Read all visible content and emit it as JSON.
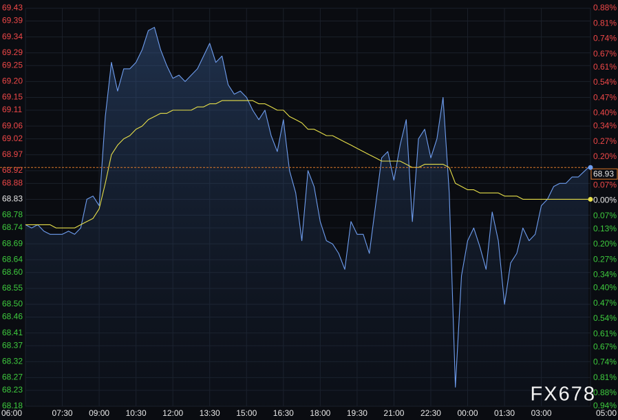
{
  "chart_data": {
    "type": "line",
    "x": [
      0,
      15,
      30,
      45,
      60,
      75,
      90,
      105,
      120,
      135,
      150,
      165,
      180,
      195,
      210,
      225,
      240,
      255,
      270,
      285,
      300,
      315,
      330,
      345,
      360,
      375,
      390,
      405,
      420,
      435,
      450,
      465,
      480,
      495,
      510,
      525,
      540,
      555,
      570,
      585,
      600,
      615,
      630,
      645,
      660,
      675,
      690,
      705,
      720,
      735,
      750,
      765,
      780,
      795,
      810,
      825,
      840,
      855,
      870,
      885,
      900,
      915,
      930,
      945,
      960,
      975,
      990,
      1005,
      1020,
      1035,
      1050,
      1065,
      1080,
      1095,
      1110,
      1125,
      1140,
      1155,
      1170,
      1185,
      1200,
      1215,
      1230,
      1245,
      1260,
      1275,
      1290,
      1305,
      1320,
      1335,
      1350,
      1375
    ],
    "series": [
      {
        "color": "#6f9ef0",
        "values": [
          68.75,
          68.74,
          68.75,
          68.73,
          68.72,
          68.72,
          68.72,
          68.73,
          68.72,
          68.74,
          68.83,
          68.84,
          68.81,
          69.09,
          69.26,
          69.17,
          69.24,
          69.24,
          69.26,
          69.3,
          69.36,
          69.37,
          69.3,
          69.25,
          69.21,
          69.22,
          69.2,
          69.22,
          69.24,
          69.28,
          69.32,
          69.26,
          69.28,
          69.19,
          69.16,
          69.17,
          69.15,
          69.11,
          69.08,
          69.11,
          69.03,
          68.98,
          69.08,
          68.92,
          68.85,
          68.7,
          68.92,
          68.87,
          68.76,
          68.7,
          68.69,
          68.66,
          68.61,
          68.76,
          68.72,
          68.72,
          68.66,
          68.81,
          68.96,
          68.98,
          68.89,
          69.0,
          69.08,
          68.76,
          69.02,
          69.05,
          68.96,
          69.02,
          69.15,
          68.85,
          68.24,
          68.59,
          68.7,
          68.74,
          68.68,
          68.61,
          68.79,
          68.7,
          68.5,
          68.63,
          68.66,
          68.74,
          68.7,
          68.72,
          68.81,
          68.83,
          68.87,
          68.88,
          68.88,
          68.9,
          68.9,
          68.93
        ]
      },
      {
        "color": "#e8e04a",
        "values": [
          68.75,
          68.75,
          68.75,
          68.75,
          68.75,
          68.74,
          68.74,
          68.74,
          68.74,
          68.75,
          68.76,
          68.77,
          68.8,
          68.88,
          68.97,
          69.0,
          69.02,
          69.03,
          69.05,
          69.06,
          69.08,
          69.09,
          69.1,
          69.1,
          69.11,
          69.11,
          69.11,
          69.11,
          69.12,
          69.12,
          69.13,
          69.13,
          69.14,
          69.14,
          69.14,
          69.14,
          69.14,
          69.14,
          69.13,
          69.13,
          69.12,
          69.11,
          69.11,
          69.09,
          69.08,
          69.07,
          69.05,
          69.05,
          69.04,
          69.03,
          69.03,
          69.02,
          69.01,
          69.0,
          68.99,
          68.98,
          68.97,
          68.96,
          68.95,
          68.95,
          68.95,
          68.95,
          68.94,
          68.93,
          68.93,
          68.94,
          68.94,
          68.94,
          68.94,
          68.93,
          68.88,
          68.87,
          68.86,
          68.86,
          68.85,
          68.85,
          68.85,
          68.85,
          68.84,
          68.84,
          68.84,
          68.83,
          68.83,
          68.83,
          68.83,
          68.83,
          68.83,
          68.83,
          68.83,
          68.83,
          68.83,
          68.83
        ]
      }
    ],
    "xlim": [
      0,
      1380
    ],
    "xticks": [
      {
        "value": 0,
        "label": "06:00"
      },
      {
        "value": 90,
        "label": "07:30"
      },
      {
        "value": 180,
        "label": "09:00"
      },
      {
        "value": 270,
        "label": "10:30"
      },
      {
        "value": 360,
        "label": "12:00"
      },
      {
        "value": 450,
        "label": "13:30"
      },
      {
        "value": 540,
        "label": "15:00"
      },
      {
        "value": 630,
        "label": "16:30"
      },
      {
        "value": 720,
        "label": "18:00"
      },
      {
        "value": 810,
        "label": "19:30"
      },
      {
        "value": 900,
        "label": "21:00"
      },
      {
        "value": 990,
        "label": "22:30"
      },
      {
        "value": 1080,
        "label": "00:00"
      },
      {
        "value": 1170,
        "label": "01:30"
      },
      {
        "value": 1260,
        "label": "03:00"
      },
      {
        "value": 1380,
        "label": "05:00"
      }
    ],
    "ylim": [
      68.18,
      69.43
    ],
    "yticks": [
      69.43,
      69.39,
      69.34,
      69.29,
      69.25,
      {
        "value": 69.2,
        "label": "69.20"
      },
      69.15,
      69.11,
      69.06,
      69.02,
      68.97,
      68.92,
      68.88,
      68.83,
      68.78,
      68.74,
      68.69,
      68.64,
      {
        "value": 68.6,
        "label": "68.60"
      },
      68.55,
      {
        "value": 68.5,
        "label": "68.50"
      },
      68.46,
      68.41,
      68.37,
      68.32,
      68.27,
      68.23,
      68.18
    ],
    "y2lim": [
      -0.94,
      0.88
    ],
    "y2ticks": [
      {
        "value": 0.88,
        "label": "0.88%"
      },
      {
        "value": 0.81,
        "label": "0.81%"
      },
      {
        "value": 0.74,
        "label": "0.74%"
      },
      {
        "value": 0.67,
        "label": "0.67%"
      },
      {
        "value": 0.61,
        "label": "0.61%"
      },
      {
        "value": 0.54,
        "label": "0.54%"
      },
      {
        "value": 0.47,
        "label": "0.47%"
      },
      {
        "value": 0.4,
        "label": "0.40%"
      },
      {
        "value": 0.34,
        "label": "0.34%"
      },
      {
        "value": 0.27,
        "label": "0.27%"
      },
      {
        "value": 0.2,
        "label": "0.20%"
      },
      {
        "value": 0.13,
        "label": "0.13%"
      },
      {
        "value": 0.07,
        "label": "0.07%"
      },
      {
        "value": 0,
        "label": "0.00%"
      },
      {
        "value": -0.07,
        "label": "0.07%"
      },
      {
        "value": -0.13,
        "label": "0.13%"
      },
      {
        "value": -0.2,
        "label": "0.20%"
      },
      {
        "value": -0.27,
        "label": "0.27%"
      },
      {
        "value": -0.34,
        "label": "0.34%"
      },
      {
        "value": -0.4,
        "label": "0.40%"
      },
      {
        "value": -0.47,
        "label": "0.47%"
      },
      {
        "value": -0.54,
        "label": "0.54%"
      },
      {
        "value": -0.61,
        "label": "0.61%"
      },
      {
        "value": -0.67,
        "label": "0.67%"
      },
      {
        "value": -0.74,
        "label": "0.74%"
      },
      {
        "value": -0.81,
        "label": "0.81%"
      },
      {
        "value": -0.88,
        "label": "0.88%"
      },
      {
        "value": -0.94,
        "label": "0.94%"
      }
    ],
    "last_price": 68.93,
    "last_price_color": "#e07a2a",
    "up_color": "#f04848",
    "down_color": "#3ecb3e",
    "flat_color": "#e8e8e8",
    "grid": true,
    "watermark": "FX678"
  }
}
